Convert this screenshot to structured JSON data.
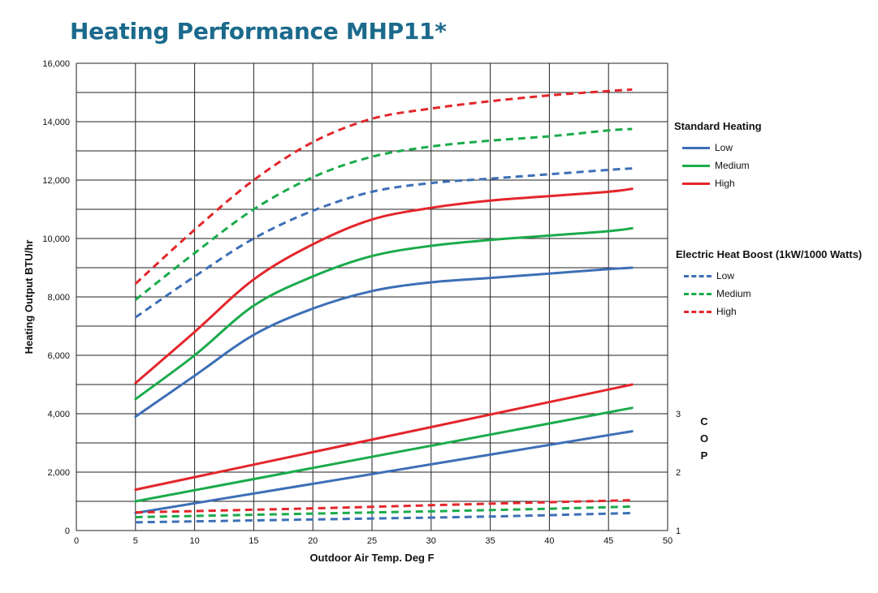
{
  "title": "Heating Performance MHP11*",
  "chart_data": {
    "type": "line",
    "xlabel": "Outdoor Air Temp. Deg F",
    "ylabel": "Heating Output BTU/hr",
    "y2label": "COP",
    "xlim": [
      0,
      50
    ],
    "ylim": [
      0,
      16000
    ],
    "xticks": [
      "0",
      "5",
      "10",
      "15",
      "20",
      "25",
      "30",
      "35",
      "40",
      "45",
      "50"
    ],
    "yticks": [
      "0",
      "2,000",
      "4,000",
      "6,000",
      "8,000",
      "10,000",
      "12,000",
      "14,000",
      "16,000"
    ],
    "y2ticks": [
      "1",
      "2",
      "3"
    ],
    "y2_positions": [
      0,
      2000,
      4000
    ],
    "grid": true,
    "colors": {
      "Low": "#3d6fb6",
      "Medium": "#1aab4b",
      "High": "#e3262b"
    },
    "legend_groups": [
      {
        "title": "Standard Heating",
        "style": "solid",
        "items": [
          "Low",
          "Medium",
          "High"
        ]
      },
      {
        "title": "Electric Heat Boost (1kW/1000 Watts)",
        "style": "dashed",
        "items": [
          "Low",
          "Medium",
          "High"
        ]
      }
    ],
    "series": [
      {
        "name": "Low",
        "group": "Standard Heating",
        "style": "solid",
        "axis": "btu",
        "x": [
          5,
          10,
          15,
          20,
          25,
          30,
          35,
          40,
          45,
          47
        ],
        "y": [
          3900,
          5300,
          6700,
          7600,
          8200,
          8500,
          8650,
          8800,
          8950,
          9000
        ]
      },
      {
        "name": "Medium",
        "group": "Standard Heating",
        "style": "solid",
        "axis": "btu",
        "x": [
          5,
          10,
          15,
          20,
          25,
          30,
          35,
          40,
          45,
          47
        ],
        "y": [
          4500,
          6000,
          7700,
          8700,
          9400,
          9750,
          9950,
          10100,
          10250,
          10350
        ]
      },
      {
        "name": "High",
        "group": "Standard Heating",
        "style": "solid",
        "axis": "btu",
        "x": [
          5,
          10,
          15,
          20,
          25,
          30,
          35,
          40,
          45,
          47
        ],
        "y": [
          5050,
          6800,
          8600,
          9800,
          10650,
          11050,
          11300,
          11450,
          11600,
          11700
        ]
      },
      {
        "name": "Low",
        "group": "Electric Heat Boost (1kW/1000 Watts)",
        "style": "dashed",
        "axis": "btu",
        "x": [
          5,
          10,
          15,
          20,
          25,
          30,
          35,
          40,
          45,
          47
        ],
        "y": [
          7300,
          8700,
          10000,
          10950,
          11600,
          11900,
          12050,
          12200,
          12350,
          12400
        ]
      },
      {
        "name": "Medium",
        "group": "Electric Heat Boost (1kW/1000 Watts)",
        "style": "dashed",
        "axis": "btu",
        "x": [
          5,
          10,
          15,
          20,
          25,
          30,
          35,
          40,
          45,
          47
        ],
        "y": [
          7900,
          9500,
          11000,
          12100,
          12800,
          13150,
          13350,
          13500,
          13700,
          13750
        ]
      },
      {
        "name": "High",
        "group": "Electric Heat Boost (1kW/1000 Watts)",
        "style": "dashed",
        "axis": "btu",
        "x": [
          5,
          10,
          15,
          20,
          25,
          30,
          35,
          40,
          45,
          47
        ],
        "y": [
          8450,
          10300,
          12000,
          13300,
          14100,
          14450,
          14700,
          14900,
          15050,
          15100
        ]
      },
      {
        "name": "Low",
        "group": "Standard Heating",
        "style": "solid",
        "axis": "cop",
        "x": [
          5,
          47
        ],
        "y": [
          1.3,
          2.7
        ]
      },
      {
        "name": "Medium",
        "group": "Standard Heating",
        "style": "solid",
        "axis": "cop",
        "x": [
          5,
          47
        ],
        "y": [
          1.5,
          3.1
        ]
      },
      {
        "name": "High",
        "group": "Standard Heating",
        "style": "solid",
        "axis": "cop",
        "x": [
          5,
          47
        ],
        "y": [
          1.7,
          3.5
        ]
      },
      {
        "name": "Low",
        "group": "Electric Heat Boost (1kW/1000 Watts)",
        "style": "dashed",
        "axis": "cop",
        "x": [
          5,
          20,
          35,
          47
        ],
        "y": [
          1.14,
          1.19,
          1.24,
          1.3
        ]
      },
      {
        "name": "Medium",
        "group": "Electric Heat Boost (1kW/1000 Watts)",
        "style": "dashed",
        "axis": "cop",
        "x": [
          5,
          20,
          35,
          47
        ],
        "y": [
          1.23,
          1.29,
          1.35,
          1.41
        ]
      },
      {
        "name": "High",
        "group": "Electric Heat Boost (1kW/1000 Watts)",
        "style": "dashed",
        "axis": "cop",
        "x": [
          5,
          20,
          35,
          47
        ],
        "y": [
          1.31,
          1.38,
          1.46,
          1.52
        ]
      }
    ]
  }
}
